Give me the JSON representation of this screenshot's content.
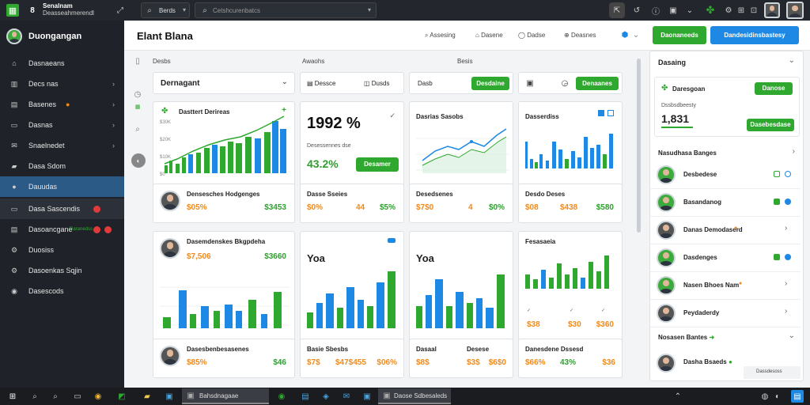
{
  "topbar": {
    "app_title_1": "Senalnam",
    "app_title_2": "Deasseahmerendl",
    "filter_label": "Berds",
    "search_placeholder": "Cetshcurenbatcs"
  },
  "sidebar": {
    "user_name": "Duongangan",
    "items": [
      {
        "label": "Dasnaeans",
        "icon": "home-icon",
        "chev": false
      },
      {
        "label": "Decs nas",
        "icon": "chart-icon",
        "chev": true
      },
      {
        "label": "Basenes",
        "icon": "briefcase-icon",
        "chev": true
      },
      {
        "label": "Dasnas",
        "icon": "document-icon",
        "chev": true
      },
      {
        "label": "Snaelnedet",
        "icon": "mail-icon",
        "chev": true
      },
      {
        "label": "Dasa Sdom",
        "icon": "folder-icon",
        "chev": false
      },
      {
        "label": "Dauudas",
        "icon": "users-icon",
        "chev": false
      },
      {
        "label": "Dasa Sascendis",
        "icon": "message-icon",
        "chev": false
      },
      {
        "label": "Dasoancgane",
        "icon": "bell-icon",
        "chev": false
      },
      {
        "label": "Duosiss",
        "icon": "settings-icon",
        "chev": false
      },
      {
        "label": "Dasoenkas Sqjin",
        "icon": "lock-icon",
        "chev": false
      },
      {
        "label": "Dasescods",
        "icon": "info-icon",
        "chev": false
      }
    ],
    "extra_label": "Daranedss"
  },
  "header": {
    "title": "Elant Blana",
    "links": [
      "Assesing",
      "Dasene",
      "Dadse",
      "Deasnes"
    ],
    "green_button": "Daonaneeds",
    "blue_button": "Dandesidinsbastesy"
  },
  "columns": {
    "col1": "Desbs",
    "col2": "Awaohs",
    "col3": "Besis"
  },
  "filter": {
    "dropdown": "Dernagant",
    "b1": "Dessce",
    "b2": "Dusds",
    "b3": "Dasb",
    "b4": "Desdaine",
    "b5": "Denaanes"
  },
  "chart1": {
    "title": "Dasttert Derireas",
    "yticks": [
      "$30K",
      "$20K",
      "$10K",
      "$0"
    ]
  },
  "kpi1": {
    "value": "1992 %",
    "sub": "Desessennes dse",
    "pct": "43.2%",
    "btn": "Desamer"
  },
  "chart2": {
    "title": "Dasrias Sasobs"
  },
  "chart3": {
    "title": "Dasserdiss"
  },
  "row1": [
    {
      "name": "Densesches Hodgenges",
      "v1": "$05%",
      "v2": "$3453"
    },
    {
      "name": "Dasse Sseies",
      "v1": "$0%",
      "v2": "$5%",
      "v3": "44"
    },
    {
      "name": "Desedsenes",
      "v1": "$7$0",
      "v2": "$0%",
      "v3": "4"
    },
    {
      "name": "Desdo Deses",
      "v1": "$08",
      "v2": "$438",
      "v3": "$580"
    }
  ],
  "bottom": {
    "person1": "Dasemdenskes Bkgpdeha",
    "person1_v1": "$7,506",
    "person1_v2": "$3660",
    "yoa1": "Yoa",
    "yoa2": "Yoa",
    "chart6_title": "Fesasaeia",
    "chart6_vals": [
      "$38",
      "$30",
      "$360"
    ],
    "person2": "Dasesbenbesasenes",
    "person2_v1": "$85%",
    "person2_v2": "$46",
    "c2_title": "Basie Sbesbs",
    "c2_v1": "$7$",
    "c2_v2": "$47$455",
    "c2_v3": "$06%",
    "c3_t1": "Dasaal",
    "c3_t2": "Desese",
    "c3_v1": "$8$",
    "c3_v2": "$3$",
    "c3_v3": "$6$0",
    "c4_title": "Danesdene Dssesd",
    "c4_v1": "$66%",
    "c4_v2": "43%",
    "c4_v3": "$36"
  },
  "right": {
    "panel_title": "Dasaing",
    "card_name": "Daresgoan",
    "card_sub": "Dssbsdbeesty",
    "card_value": "1,831",
    "btn1": "Danose",
    "btn2": "Dasebesdase",
    "section_title": "Nasudhasa Banges",
    "people": [
      {
        "name": "Desbedese"
      },
      {
        "name": "Basandanog"
      },
      {
        "name": "Danas Demodaserd"
      },
      {
        "name": "Dasdenges"
      },
      {
        "name": "Nasen Bhoes Nam"
      },
      {
        "name": "Peydaderdy"
      }
    ],
    "footer1": "Nosasen Bantes",
    "footer2": "Dasha Bsaeds",
    "reset": "Dassdesoss"
  },
  "taskbar": {
    "item1": "Bahsdnagaae",
    "item2": "Daose Sdbesaleds"
  }
}
